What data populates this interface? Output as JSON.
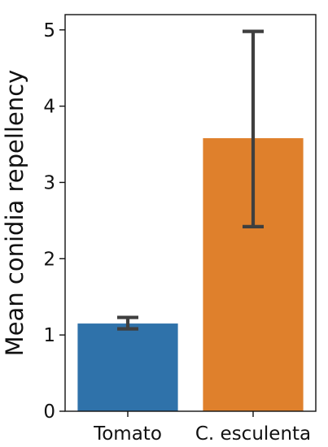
{
  "chart_data": {
    "type": "bar",
    "categories": [
      "Tomato",
      "C. esculenta"
    ],
    "values": [
      1.15,
      3.58
    ],
    "error_bars": [
      {
        "low": 1.08,
        "high": 1.23
      },
      {
        "low": 2.42,
        "high": 4.98
      }
    ],
    "bar_colors": [
      "#2f72aa",
      "#df802c"
    ],
    "ylabel": "Mean conidia repellency",
    "xlabel": "",
    "ylim": [
      0,
      5.2
    ],
    "y_ticks": [
      0,
      1,
      2,
      3,
      4,
      5
    ],
    "grid": false,
    "legend": "none"
  }
}
